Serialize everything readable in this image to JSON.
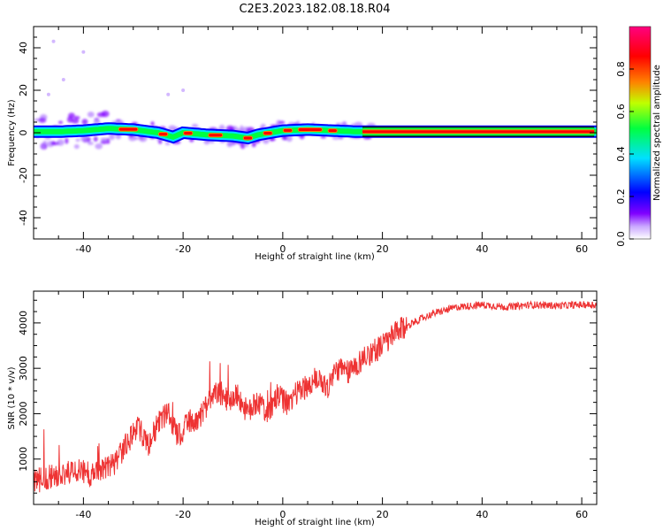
{
  "figure": {
    "title": "C2E3.2023.182.08.18.R04"
  },
  "chart_data": [
    {
      "type": "heatmap",
      "xlabel": "Height of straight line (km)",
      "ylabel": "Frequency (Hz)",
      "xlim": [
        -50,
        63
      ],
      "ylim": [
        -50,
        50
      ],
      "xticks": [
        -40,
        -20,
        0,
        20,
        40,
        60
      ],
      "yticks": [
        -40,
        -20,
        0,
        20,
        40
      ],
      "grid": false,
      "colorbar": {
        "label": "Normalized spectral amplitude",
        "range": [
          0,
          1
        ],
        "ticks": [
          0.0,
          0.2,
          0.4,
          0.6,
          0.8
        ],
        "colormap": [
          "#ffffff",
          "#8000ff",
          "#0000ff",
          "#00e0ff",
          "#00ff40",
          "#c0ff00",
          "#ff8000",
          "#ff0000",
          "#ff0080"
        ]
      },
      "ridge": {
        "x": [
          -50,
          -45,
          -40,
          -35,
          -30,
          -25,
          -22,
          -20,
          -15,
          -10,
          -7,
          -5,
          0,
          5,
          10,
          15,
          20,
          30,
          40,
          50,
          60,
          62.5
        ],
        "y": [
          0.5,
          0.5,
          1.0,
          2.0,
          1.5,
          0.0,
          -2.0,
          0.0,
          -1.0,
          -1.5,
          -2.5,
          -1.0,
          1.0,
          1.5,
          1.0,
          0.5,
          0.5,
          0.5,
          0.5,
          0.5,
          0.5,
          0.5
        ]
      }
    },
    {
      "type": "line",
      "xlabel": "Height of straight line (km)",
      "ylabel": "SNR (10 * v/v)",
      "xlim": [
        -50,
        63
      ],
      "ylim": [
        0,
        4700
      ],
      "xticks": [
        -40,
        -20,
        0,
        20,
        40,
        60
      ],
      "yticks": [
        1000,
        2000,
        3000,
        4000
      ],
      "grid": false,
      "color": "#ee3333",
      "series": [
        {
          "x": [
            -50,
            -47,
            -44,
            -41,
            -38,
            -35,
            -33,
            -31,
            -29,
            -27,
            -25,
            -23,
            -21,
            -19,
            -17,
            -15,
            -13,
            -11,
            -9,
            -7,
            -5,
            -3,
            -1,
            1,
            3,
            5,
            7,
            9,
            11,
            13,
            15,
            17,
            20,
            23,
            26,
            30,
            35,
            40,
            45,
            50,
            55,
            60,
            63
          ],
          "y": [
            500,
            600,
            700,
            750,
            650,
            800,
            1000,
            1400,
            1700,
            1300,
            1800,
            2000,
            1500,
            1800,
            1900,
            2200,
            2500,
            2300,
            2400,
            2000,
            2300,
            2000,
            2400,
            2200,
            2500,
            2600,
            2800,
            2600,
            3000,
            2900,
            3100,
            3300,
            3500,
            3800,
            4000,
            4200,
            4350,
            4400,
            4350,
            4400,
            4380,
            4400,
            4400
          ]
        }
      ]
    }
  ]
}
